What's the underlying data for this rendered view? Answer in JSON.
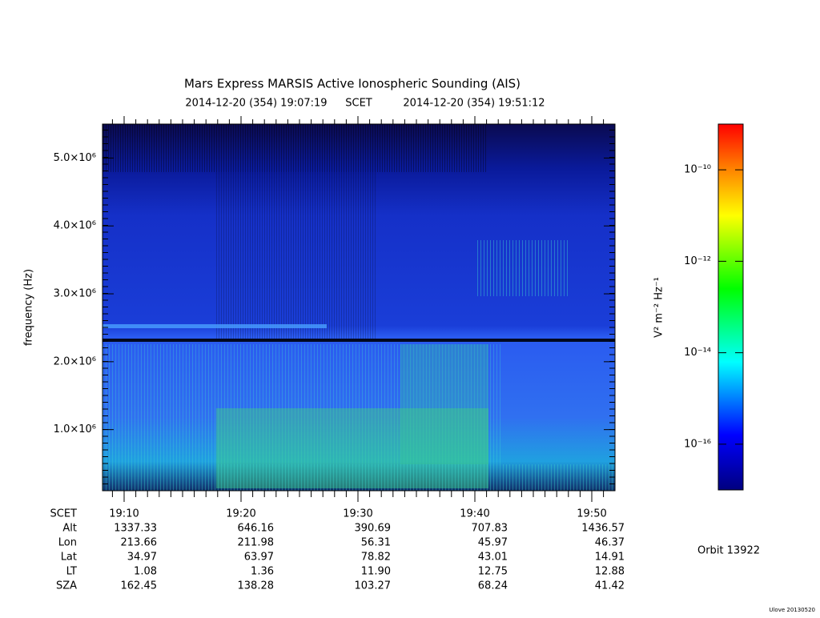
{
  "chart_data": {
    "type": "spectrogram",
    "title": "Mars Express MARSIS Active Ionospheric Sounding (AIS)",
    "start": "2014-12-20 (354) 19:07:19",
    "time_label": "SCET",
    "end": "2014-12-20 (354) 19:51:12",
    "ylabel": "frequency (Hz)",
    "ylim": [
      100000,
      5500000
    ],
    "yticks": [
      {
        "value": 1000000,
        "label": "1.0×10⁶"
      },
      {
        "value": 2000000,
        "label": "2.0×10⁶"
      },
      {
        "value": 3000000,
        "label": "3.0×10⁶"
      },
      {
        "value": 4000000,
        "label": "4.0×10⁶"
      },
      {
        "value": 5000000,
        "label": "5.0×10⁶"
      }
    ],
    "xticks": [
      "19:10",
      "19:20",
      "19:30",
      "19:40",
      "19:50"
    ],
    "colorbar": {
      "label": "V² m⁻² Hz⁻¹",
      "log": true,
      "lim": [
        1e-17,
        1e-09
      ],
      "ticks": [
        {
          "value": 1e-16,
          "label": "10⁻¹⁶"
        },
        {
          "value": 1e-14,
          "label": "10⁻¹⁴"
        },
        {
          "value": 1e-12,
          "label": "10⁻¹²"
        },
        {
          "value": 1e-10,
          "label": "10⁻¹⁰"
        }
      ]
    }
  },
  "ephemeris": {
    "time_label": "SCET",
    "rows": [
      {
        "label": "Alt",
        "values": [
          "1337.33",
          "646.16",
          "390.69",
          "707.83",
          "1436.57"
        ]
      },
      {
        "label": "Lon",
        "values": [
          "213.66",
          "211.98",
          "56.31",
          "45.97",
          "46.37"
        ]
      },
      {
        "label": "Lat",
        "values": [
          "34.97",
          "63.97",
          "78.82",
          "43.01",
          "14.91"
        ]
      },
      {
        "label": "LT",
        "values": [
          "1.08",
          "1.36",
          "11.90",
          "12.75",
          "12.88"
        ]
      },
      {
        "label": "SZA",
        "values": [
          "162.45",
          "138.28",
          "103.27",
          "68.24",
          "41.42"
        ]
      }
    ]
  },
  "orbit": "Orbit 13922",
  "version": "Ulove 20130520"
}
